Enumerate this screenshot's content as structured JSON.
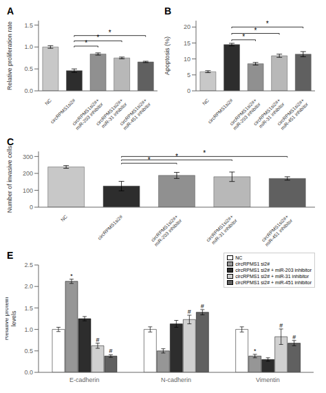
{
  "chart_data": [
    {
      "type": "bar",
      "title": "A",
      "ylabel": "Relative proliferation rate",
      "categories": [
        "NC",
        "circRPMS1si2#",
        "circRPMS1si2#+\nmiR-203 inhibitor",
        "circRPMS1si2#+\nmiR-31 inhibitor",
        "circRPMS1si2#+\nmiR-451 inhibitor"
      ],
      "values": [
        1.0,
        0.46,
        0.84,
        0.75,
        0.66
      ],
      "errors": [
        0.03,
        0.04,
        0.025,
        0.02,
        0.015
      ],
      "colors": [
        "#c8c8c8",
        "#2d2d2d",
        "#909090",
        "#b8b8b8",
        "#606060"
      ],
      "ylim": [
        0,
        1.6
      ],
      "yticks": [
        {
          "value": 0.0,
          "label": "0.0"
        },
        {
          "value": 0.5,
          "label": "0.5"
        },
        {
          "value": 1.0,
          "label": "1.0"
        },
        {
          "value": 1.5,
          "label": "1.5"
        }
      ],
      "annotations": [
        {
          "from": "circRPMS1si2#",
          "to": "circRPMS1si2#+\nmiR-203 inhibitor",
          "y": 1.02,
          "text": "*"
        },
        {
          "from": "circRPMS1si2#",
          "to": "circRPMS1si2#+\nmiR-31 inhibitor",
          "y": 1.14,
          "text": "*"
        },
        {
          "from": "circRPMS1si2#",
          "to": "circRPMS1si2#+\nmiR-451 inhibitor",
          "y": 1.26,
          "text": "*"
        }
      ]
    },
    {
      "type": "bar",
      "title": "B",
      "ylabel": "Apoptosis (%)",
      "categories": [
        "NC",
        "circRPMS1si2#",
        "circRPMS1si2#+\nmiR-203 inhibitor",
        "circRPMS1si2#+\nmiR-31 inhibitor",
        "circRPMS1si2#+\nmiR-451 inhibitor"
      ],
      "values": [
        6.0,
        14.5,
        8.5,
        11.0,
        11.5
      ],
      "errors": [
        0.3,
        0.4,
        0.4,
        0.5,
        0.8
      ],
      "colors": [
        "#c8c8c8",
        "#2d2d2d",
        "#909090",
        "#b8b8b8",
        "#606060"
      ],
      "ylim": [
        0,
        22
      ],
      "yticks": [
        0,
        5,
        10,
        15,
        20
      ],
      "annotations": [
        {
          "from": "circRPMS1si2#",
          "to": "circRPMS1si2#+\nmiR-203 inhibitor",
          "y": 16.0,
          "text": "*"
        },
        {
          "from": "circRPMS1si2#",
          "to": "circRPMS1si2#+\nmiR-31 inhibitor",
          "y": 18.0,
          "text": "*"
        },
        {
          "from": "circRPMS1si2#",
          "to": "circRPMS1si2#+\nmiR-451 inhibitor",
          "y": 20.0,
          "text": "*"
        }
      ]
    },
    {
      "type": "bar",
      "title": "C",
      "ylabel": "Number of invasive cells",
      "categories": [
        "NC",
        "circRPMS1si2#",
        "circRPMS1si2#+\nmiR-203 inhibitor",
        "circRPMS1si2#+\nmiR-31 inhibitor",
        "circRPMS1si2#+\nmiR-451 inhibitor"
      ],
      "values": [
        238,
        125,
        188,
        180,
        170
      ],
      "errors": [
        8,
        28,
        18,
        28,
        10
      ],
      "colors": [
        "#c8c8c8",
        "#2d2d2d",
        "#909090",
        "#b8b8b8",
        "#606060"
      ],
      "ylim": [
        0,
        330
      ],
      "yticks": [
        0,
        100,
        200,
        300
      ],
      "annotations": [
        {
          "from": "circRPMS1si2#",
          "to": "circRPMS1si2#+\nmiR-203 inhibitor",
          "y": 260,
          "text": "*"
        },
        {
          "from": "circRPMS1si2#",
          "to": "circRPMS1si2#+\nmiR-31 inhibitor",
          "y": 280,
          "text": "*"
        },
        {
          "from": "circRPMS1si2#",
          "to": "circRPMS1si2#+\nmiR-451 inhibitor",
          "y": 300,
          "text": "*"
        }
      ]
    },
    {
      "type": "bar",
      "title": "E",
      "ylabel": "Relative protein\nlevels",
      "categories": [
        "E-cadherin",
        "N-cadherin",
        "Vimentin"
      ],
      "series": [
        {
          "name": "NC",
          "color": "#ffffff",
          "values": [
            1.0,
            1.0,
            1.0
          ],
          "errors": [
            0.05,
            0.06,
            0.06
          ]
        },
        {
          "name": "circRPMS1 si2#",
          "color": "#969696",
          "values": [
            2.12,
            0.5,
            0.38
          ],
          "errors": [
            0.05,
            0.05,
            0.04
          ]
        },
        {
          "name": "circRPMS1 si2# + miR-203 inhibitor",
          "color": "#2d2d2d",
          "values": [
            1.25,
            1.13,
            0.3
          ],
          "errors": [
            0.05,
            0.08,
            0.04
          ]
        },
        {
          "name": "circRPMS1 si2# + miR-31 inhibitor",
          "color": "#d0d0d0",
          "values": [
            0.62,
            1.23,
            0.83
          ],
          "errors": [
            0.06,
            0.1,
            0.18
          ]
        },
        {
          "name": "circRPMS1 si2# + miR-451 inhibitor",
          "color": "#606060",
          "values": [
            0.38,
            1.4,
            0.68
          ],
          "errors": [
            0.03,
            0.06,
            0.06
          ]
        }
      ],
      "ylim": [
        0,
        2.5
      ],
      "yticks": [
        {
          "value": 0.0,
          "label": "0.0"
        },
        {
          "value": 0.5,
          "label": "0.5"
        },
        {
          "value": 1.0,
          "label": "1.0"
        },
        {
          "value": 1.5,
          "label": "1.5"
        },
        {
          "value": 2.0,
          "label": "2.0"
        },
        {
          "value": 2.5,
          "label": "2.5"
        }
      ],
      "legend": "upper right",
      "annotations": [
        {
          "group": "E-cadherin",
          "series": "circRPMS1 si2#",
          "text": "*"
        },
        {
          "group": "E-cadherin",
          "series": "circRPMS1 si2# + miR-31 inhibitor",
          "text": "#"
        },
        {
          "group": "E-cadherin",
          "series": "circRPMS1 si2# + miR-451 inhibitor",
          "text": "#"
        },
        {
          "group": "N-cadherin",
          "series": "circRPMS1 si2# + miR-31 inhibitor",
          "text": "#"
        },
        {
          "group": "N-cadherin",
          "series": "circRPMS1 si2# + miR-451 inhibitor",
          "text": "#"
        },
        {
          "group": "Vimentin",
          "series": "circRPMS1 si2#",
          "text": "*"
        },
        {
          "group": "Vimentin",
          "series": "circRPMS1 si2# + miR-31 inhibitor",
          "text": "#"
        },
        {
          "group": "Vimentin",
          "series": "circRPMS1 si2# + miR-451 inhibitor",
          "text": "#"
        }
      ]
    }
  ]
}
